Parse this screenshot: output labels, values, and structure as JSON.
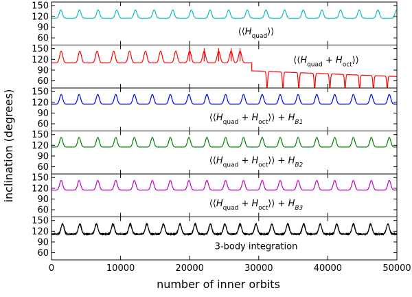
{
  "chart_data": {
    "type": "line",
    "xlabel": "number of inner orbits",
    "ylabel": "inclination (degrees)",
    "xlim": [
      0,
      50000
    ],
    "ylim": [
      40,
      160
    ],
    "x_ticks": [
      0,
      10000,
      20000,
      30000,
      40000,
      50000
    ],
    "y_ticks": [
      60,
      90,
      120,
      150
    ],
    "grid": false,
    "panels": [
      {
        "label": "⟨⟨H_quad⟩⟩",
        "label_parts": [
          {
            "t": "⟨⟨",
            "k": "n"
          },
          {
            "t": "H",
            "k": "i"
          },
          {
            "t": "quad",
            "k": "sub"
          },
          {
            "t": "⟩⟩",
            "k": "n"
          }
        ],
        "color": "#00bfbf",
        "behavior": "oscillation",
        "peak_x": [
          1350,
          4050,
          6750,
          9450,
          12150,
          14850,
          17550,
          20250,
          22950,
          25650,
          28350,
          31050,
          33750,
          36450,
          39150,
          41850,
          44550,
          47250,
          49950
        ],
        "baseline_deg": 115,
        "peak_deg": 138
      },
      {
        "label": "⟨⟨H_quad + H_oct⟩⟩",
        "label_parts": [
          {
            "t": "⟨⟨",
            "k": "n"
          },
          {
            "t": "H",
            "k": "i"
          },
          {
            "t": "quad",
            "k": "sub"
          },
          {
            "t": " + ",
            "k": "n"
          },
          {
            "t": "H",
            "k": "i"
          },
          {
            "t": "oct",
            "k": "sub"
          },
          {
            "t": "⟩⟩",
            "k": "n"
          }
        ],
        "color": "#ff0000",
        "behavior": "flip",
        "peak_x": [
          1400,
          4100,
          6600,
          9000,
          11300,
          13600,
          15800,
          18000,
          20000,
          22100,
          24200,
          26000,
          27300
        ],
        "baseline_deg": 110,
        "peak_deg": 143,
        "flip_x": 29000,
        "flip_to_deg": 88,
        "post_flip_trend_deg": [
          88,
          72
        ],
        "post_flip_dip_x": [
          31200,
          33500,
          35800,
          38100,
          40300,
          42500,
          44600,
          46600,
          48600
        ],
        "post_flip_dip_deg": 40
      },
      {
        "label": "⟨⟨H_quad + H_oct⟩⟩ + H_B1",
        "label_parts": [
          {
            "t": "⟨⟨",
            "k": "n"
          },
          {
            "t": "H",
            "k": "i"
          },
          {
            "t": "quad",
            "k": "sub"
          },
          {
            "t": " + ",
            "k": "n"
          },
          {
            "t": "H",
            "k": "i"
          },
          {
            "t": "oct",
            "k": "sub"
          },
          {
            "t": "⟩⟩ + ",
            "k": "n"
          },
          {
            "t": "H",
            "k": "i"
          },
          {
            "t": "B1",
            "k": "subi"
          }
        ],
        "color": "#0000ff",
        "behavior": "oscillation",
        "peak_x": [
          1400,
          4000,
          6700,
          9300,
          12000,
          14600,
          17200,
          19900,
          22500,
          25200,
          27800,
          30500,
          33100,
          35700,
          38400,
          41000,
          43700,
          46300,
          48900
        ],
        "baseline_deg": 115,
        "peak_deg": 142
      },
      {
        "label": "⟨⟨H_quad + H_oct⟩⟩ + H_B2",
        "label_parts": [
          {
            "t": "⟨⟨",
            "k": "n"
          },
          {
            "t": "H",
            "k": "i"
          },
          {
            "t": "quad",
            "k": "sub"
          },
          {
            "t": " + ",
            "k": "n"
          },
          {
            "t": "H",
            "k": "i"
          },
          {
            "t": "oct",
            "k": "sub"
          },
          {
            "t": "⟩⟩ + ",
            "k": "n"
          },
          {
            "t": "H",
            "k": "i"
          },
          {
            "t": "B2",
            "k": "subi"
          }
        ],
        "color": "#008000",
        "behavior": "oscillation",
        "peak_x": [
          1400,
          4000,
          6700,
          9300,
          12000,
          14600,
          17200,
          19900,
          22500,
          25200,
          27800,
          30500,
          33100,
          35700,
          38400,
          41000,
          43700,
          46300,
          48900
        ],
        "baseline_deg": 115,
        "peak_deg": 142
      },
      {
        "label": "⟨⟨H_quad + H_oct⟩⟩ + H_B3",
        "label_parts": [
          {
            "t": "⟨⟨",
            "k": "n"
          },
          {
            "t": "H",
            "k": "i"
          },
          {
            "t": "quad",
            "k": "sub"
          },
          {
            "t": " + ",
            "k": "n"
          },
          {
            "t": "H",
            "k": "i"
          },
          {
            "t": "oct",
            "k": "sub"
          },
          {
            "t": "⟩⟩ + ",
            "k": "n"
          },
          {
            "t": "H",
            "k": "i"
          },
          {
            "t": "B3",
            "k": "subi"
          }
        ],
        "color": "#bf00bf",
        "behavior": "oscillation",
        "peak_x": [
          1400,
          4000,
          6700,
          9300,
          12000,
          14600,
          17200,
          19900,
          22500,
          25200,
          27800,
          30500,
          33100,
          35700,
          38400,
          41000,
          43700,
          46300,
          48900
        ],
        "baseline_deg": 115,
        "peak_deg": 142
      },
      {
        "label": "3-body integration",
        "label_parts": [
          {
            "t": "3-body integration",
            "k": "n"
          }
        ],
        "color": "#000000",
        "behavior": "noisy_oscillation",
        "peak_x": [
          1600,
          4100,
          6500,
          8900,
          11400,
          13800,
          16200,
          18600,
          20800,
          23000,
          25100,
          27300,
          29600,
          31900,
          34200,
          36500,
          38900,
          41300,
          43700,
          46200,
          48700
        ],
        "baseline_deg": 112,
        "peak_deg": 140
      }
    ]
  }
}
